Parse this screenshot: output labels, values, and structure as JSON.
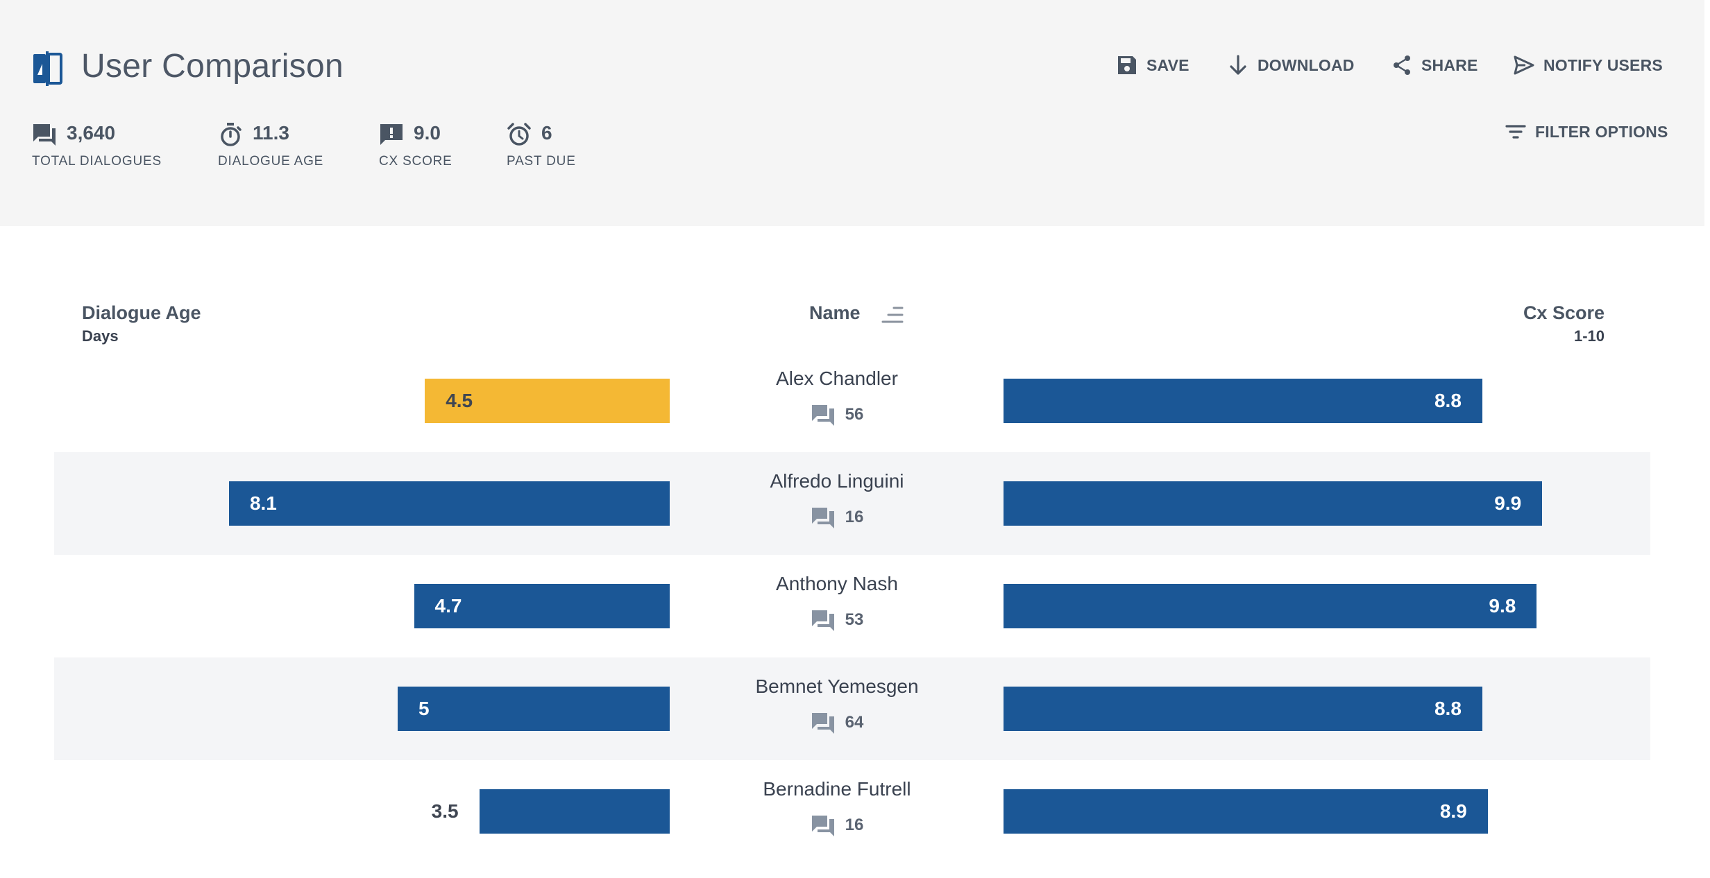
{
  "header": {
    "title": "User Comparison",
    "icon": "split-compare-icon",
    "stats": [
      {
        "icon": "chat-icon",
        "value": "3,640",
        "label": "TOTAL DIALOGUES"
      },
      {
        "icon": "stopwatch-icon",
        "value": "11.3",
        "label": "DIALOGUE AGE"
      },
      {
        "icon": "alert-message-icon",
        "value": "9.0",
        "label": "CX SCORE"
      },
      {
        "icon": "alarm-clock-icon",
        "value": "6",
        "label": "PAST DUE"
      }
    ],
    "actions": {
      "save": "SAVE",
      "download": "DOWNLOAD",
      "share": "SHARE",
      "notify": "NOTIFY USERS",
      "filter": "FILTER OPTIONS"
    }
  },
  "columns": {
    "age_title": "Dialogue Age",
    "age_unit": "Days",
    "name_title": "Name",
    "cx_title": "Cx Score",
    "cx_unit": "1-10"
  },
  "colors": {
    "bar": "#1b5796",
    "bar_warning": "#f4b834",
    "header_bg": "#f5f5f5",
    "row_alt_bg": "#f4f5f7"
  },
  "rows": [
    {
      "name": "Alex Chandler",
      "dialogues": "56",
      "age": "4.5",
      "age_value": 4.5,
      "age_warning": true,
      "cx": "8.8",
      "cx_value": 8.8
    },
    {
      "name": "Alfredo Linguini",
      "dialogues": "16",
      "age": "8.1",
      "age_value": 8.1,
      "age_warning": false,
      "cx": "9.9",
      "cx_value": 9.9
    },
    {
      "name": "Anthony Nash",
      "dialogues": "53",
      "age": "4.7",
      "age_value": 4.7,
      "age_warning": false,
      "cx": "9.8",
      "cx_value": 9.8
    },
    {
      "name": "Bemnet Yemesgen",
      "dialogues": "64",
      "age": "5",
      "age_value": 5,
      "age_warning": false,
      "cx": "8.8",
      "cx_value": 8.8
    },
    {
      "name": "Bernadine Futrell",
      "dialogues": "16",
      "age": "3.5",
      "age_value": 3.5,
      "age_warning": false,
      "cx": "8.9",
      "cx_value": 8.9
    }
  ]
}
